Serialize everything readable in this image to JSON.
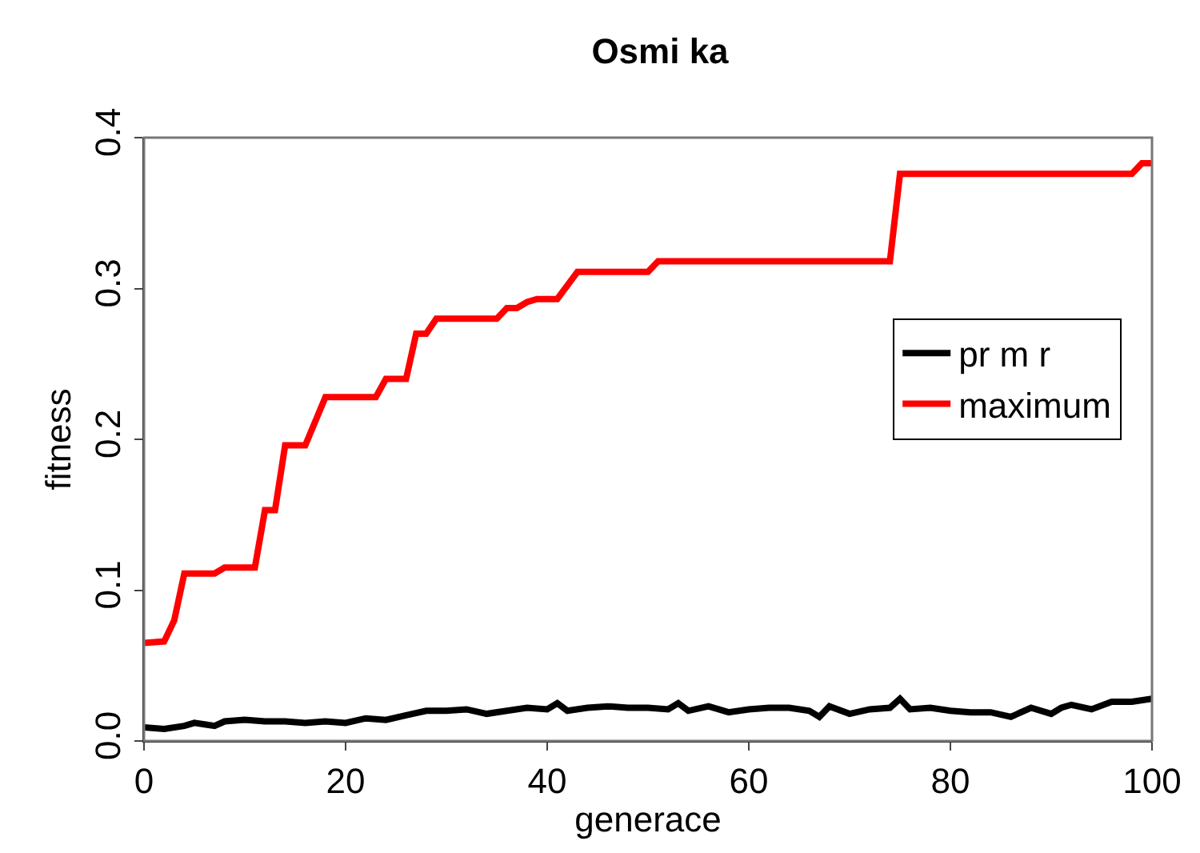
{
  "chart_data": {
    "type": "line",
    "title": "Osmi ka",
    "xlabel": "generace",
    "ylabel": "fitness",
    "xlim": [
      0,
      100
    ],
    "ylim": [
      0,
      0.4
    ],
    "xticks": [
      0,
      20,
      40,
      60,
      80,
      100
    ],
    "yticks": [
      {
        "value": 0,
        "label": "0.0"
      },
      0.1,
      0.2,
      0.3,
      0.4
    ],
    "legend": "right",
    "line_style": "solid",
    "series": [
      {
        "name": "pr m r",
        "color": "#000000",
        "x": [
          0,
          2,
          4,
          5,
          6,
          7,
          8,
          10,
          12,
          14,
          16,
          18,
          20,
          22,
          24,
          26,
          28,
          30,
          32,
          34,
          36,
          38,
          40,
          41,
          42,
          44,
          46,
          48,
          50,
          52,
          53,
          54,
          56,
          58,
          60,
          62,
          64,
          66,
          67,
          68,
          70,
          72,
          74,
          75,
          76,
          78,
          80,
          82,
          84,
          86,
          88,
          90,
          91,
          92,
          94,
          96,
          98,
          100
        ],
        "values": [
          0.009,
          0.008,
          0.01,
          0.012,
          0.011,
          0.01,
          0.013,
          0.014,
          0.013,
          0.013,
          0.012,
          0.013,
          0.012,
          0.015,
          0.014,
          0.017,
          0.02,
          0.02,
          0.021,
          0.018,
          0.02,
          0.022,
          0.021,
          0.025,
          0.02,
          0.022,
          0.023,
          0.022,
          0.022,
          0.021,
          0.025,
          0.02,
          0.023,
          0.019,
          0.021,
          0.022,
          0.022,
          0.02,
          0.016,
          0.023,
          0.018,
          0.021,
          0.022,
          0.028,
          0.021,
          0.022,
          0.02,
          0.019,
          0.019,
          0.016,
          0.022,
          0.018,
          0.022,
          0.024,
          0.021,
          0.026,
          0.026,
          0.028
        ]
      },
      {
        "name": "maximum",
        "color": "#ff0000",
        "x": [
          0,
          2,
          3,
          4,
          7,
          8,
          11,
          12,
          13,
          14,
          16,
          18,
          23,
          24,
          26,
          27,
          28,
          29,
          35,
          36,
          37,
          38,
          39,
          41,
          43,
          50,
          51,
          74,
          75,
          98,
          99,
          100
        ],
        "values": [
          0.065,
          0.066,
          0.08,
          0.111,
          0.111,
          0.115,
          0.115,
          0.153,
          0.153,
          0.196,
          0.196,
          0.228,
          0.228,
          0.24,
          0.24,
          0.27,
          0.27,
          0.28,
          0.28,
          0.287,
          0.287,
          0.291,
          0.293,
          0.293,
          0.311,
          0.311,
          0.318,
          0.318,
          0.376,
          0.376,
          0.383,
          0.383
        ]
      }
    ]
  }
}
